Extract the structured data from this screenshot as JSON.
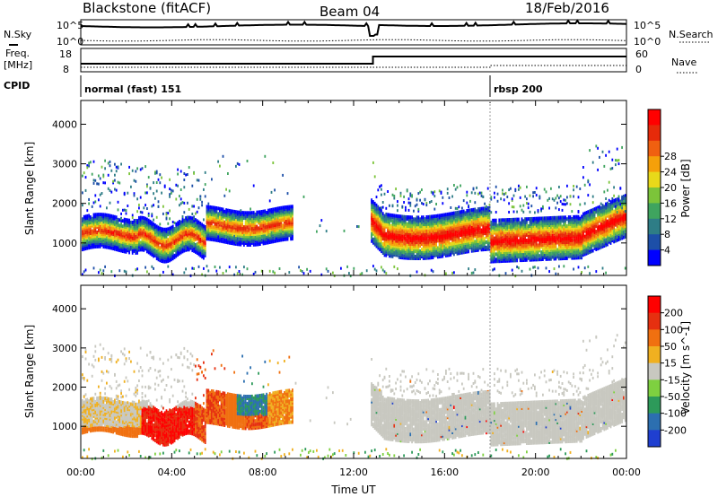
{
  "header": {
    "station": "Blackstone (fitACF)",
    "beam": "Beam 04",
    "date": "18/Feb/2016"
  },
  "nsky_panel": {
    "left_label": "N.Sky",
    "right_label": "N.Search",
    "tick_labels": [
      "10^5",
      "10^0"
    ]
  },
  "freq_panel": {
    "left_label_line1": "Freq.",
    "left_label_line2": "[MHz]",
    "left_ticks": [
      "18",
      "8"
    ],
    "right_label": "Nave",
    "right_ticks": [
      "60",
      "0"
    ]
  },
  "cpid_panel": {
    "label": "CPID",
    "modes": [
      {
        "name": "normal (fast) 151",
        "start_hour": 0
      },
      {
        "name": "rbsp 200",
        "start_hour": 18.0
      }
    ]
  },
  "chart_data": [
    {
      "type": "heatmap",
      "name": "power",
      "ylabel": "Slant Range [km]",
      "xlabel": "",
      "ylim": [
        180,
        4600
      ],
      "xlim_hours": [
        0,
        24
      ],
      "yticks": [
        1000,
        2000,
        3000,
        4000
      ],
      "colorbar": {
        "label": "Power [dB]",
        "ticks": [
          "4",
          "8",
          "12",
          "16",
          "20",
          "24",
          "28"
        ],
        "colors": [
          "#0000ff",
          "#1d4fa8",
          "#2e7d86",
          "#3fa45f",
          "#7cc43a",
          "#e8d91a",
          "#f5a00a",
          "#f06010",
          "#e62a0a",
          "#ff0000"
        ]
      }
    },
    {
      "type": "heatmap",
      "name": "velocity",
      "ylabel": "Slant Range [km]",
      "xlabel": "Time UT",
      "ylim": [
        180,
        4600
      ],
      "xlim_hours": [
        0,
        24
      ],
      "yticks": [
        1000,
        2000,
        3000,
        4000
      ],
      "xticks": [
        "00:00",
        "04:00",
        "08:00",
        "12:00",
        "16:00",
        "20:00",
        "00:00"
      ],
      "colorbar": {
        "label": "Velocity [m s^-1]",
        "ticks": [
          "200",
          "100",
          "50",
          "15",
          "-15",
          "-50",
          "-100",
          "-200"
        ],
        "colors": [
          "#1f3fd0",
          "#2c6fb0",
          "#2d9a5a",
          "#7ed040",
          "#c8c8c0",
          "#f0b020",
          "#f07010",
          "#e63010",
          "#ff0000"
        ]
      }
    }
  ]
}
